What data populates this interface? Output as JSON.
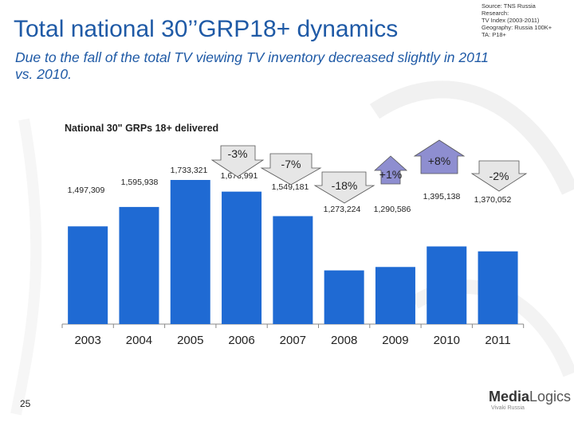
{
  "header": {
    "title": "Total national 30’’GRP18+ dynamics",
    "subtitle": "Due to the fall of the total TV viewing TV inventory decreased slightly in 2011 vs. 2010.",
    "source": "Source: TNS Russia\nResearch:\nTV Index (2003-2011)\nGeography: Russia 100K+\nTA: P18+"
  },
  "chart_data": {
    "type": "bar",
    "title": "National 30\" GRPs 18+ delivered",
    "categories": [
      "2003",
      "2004",
      "2005",
      "2006",
      "2007",
      "2008",
      "2009",
      "2010",
      "2011"
    ],
    "values": [
      1497309,
      1595938,
      1733321,
      1673991,
      1549181,
      1273224,
      1290586,
      1395138,
      1370052
    ],
    "value_labels": [
      "1,497,309",
      "1,595,938",
      "1,733,321",
      "1,673,991",
      "1,549,181",
      "1,273,224",
      "1,290,586",
      "1,395,138",
      "1,370,052"
    ],
    "changes": [
      {
        "from": "2005",
        "to": "2006",
        "label": "-3%",
        "direction": "down"
      },
      {
        "from": "2006",
        "to": "2007",
        "label": "-7%",
        "direction": "down"
      },
      {
        "from": "2007",
        "to": "2008",
        "label": "-18%",
        "direction": "down"
      },
      {
        "from": "2008",
        "to": "2009",
        "label": "+1%",
        "direction": "up"
      },
      {
        "from": "2009",
        "to": "2010",
        "label": "+8%",
        "direction": "up"
      },
      {
        "from": "2010",
        "to": "2011",
        "label": "-2%",
        "direction": "down"
      }
    ],
    "colors": {
      "bar": "#1f6ad3",
      "arrow_down": "#e6e6e6",
      "arrow_up": "#8e8ed0",
      "arrow_stroke": "#555555"
    },
    "grid": false
  },
  "footer": {
    "page_number": "25",
    "logo_part1": "Media",
    "logo_part2": "Logics",
    "logo_sub": "Vivaki Russia"
  }
}
